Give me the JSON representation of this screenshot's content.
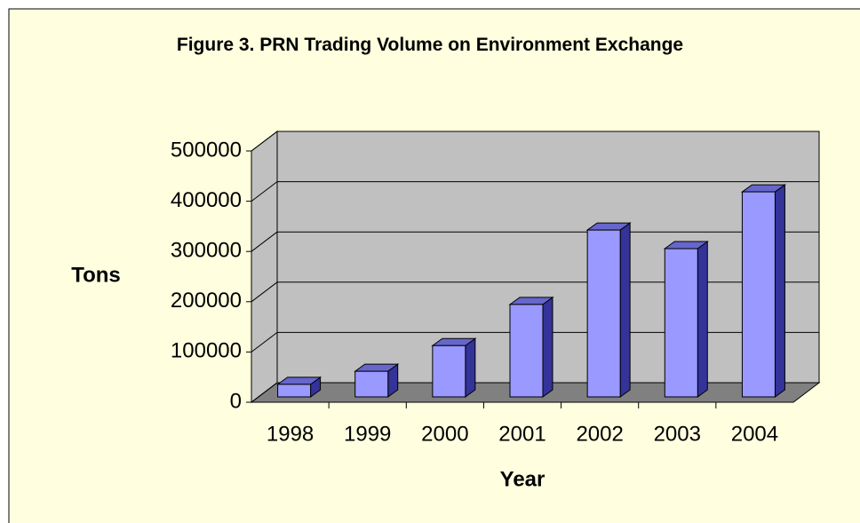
{
  "chart_data": {
    "type": "bar",
    "title": "Figure 3. PRN Trading Volume on Environment Exchange",
    "x_label": "Year",
    "y_label": "Tons",
    "categories": [
      "1998",
      "1999",
      "2000",
      "2001",
      "2002",
      "2003",
      "2004"
    ],
    "values": [
      25000,
      51000,
      102000,
      184000,
      332000,
      295000,
      408000
    ],
    "color": "#9999ff",
    "ylim": [
      0,
      500000
    ],
    "yticks": [
      0,
      100000,
      200000,
      300000,
      400000,
      500000
    ],
    "grid": true
  }
}
